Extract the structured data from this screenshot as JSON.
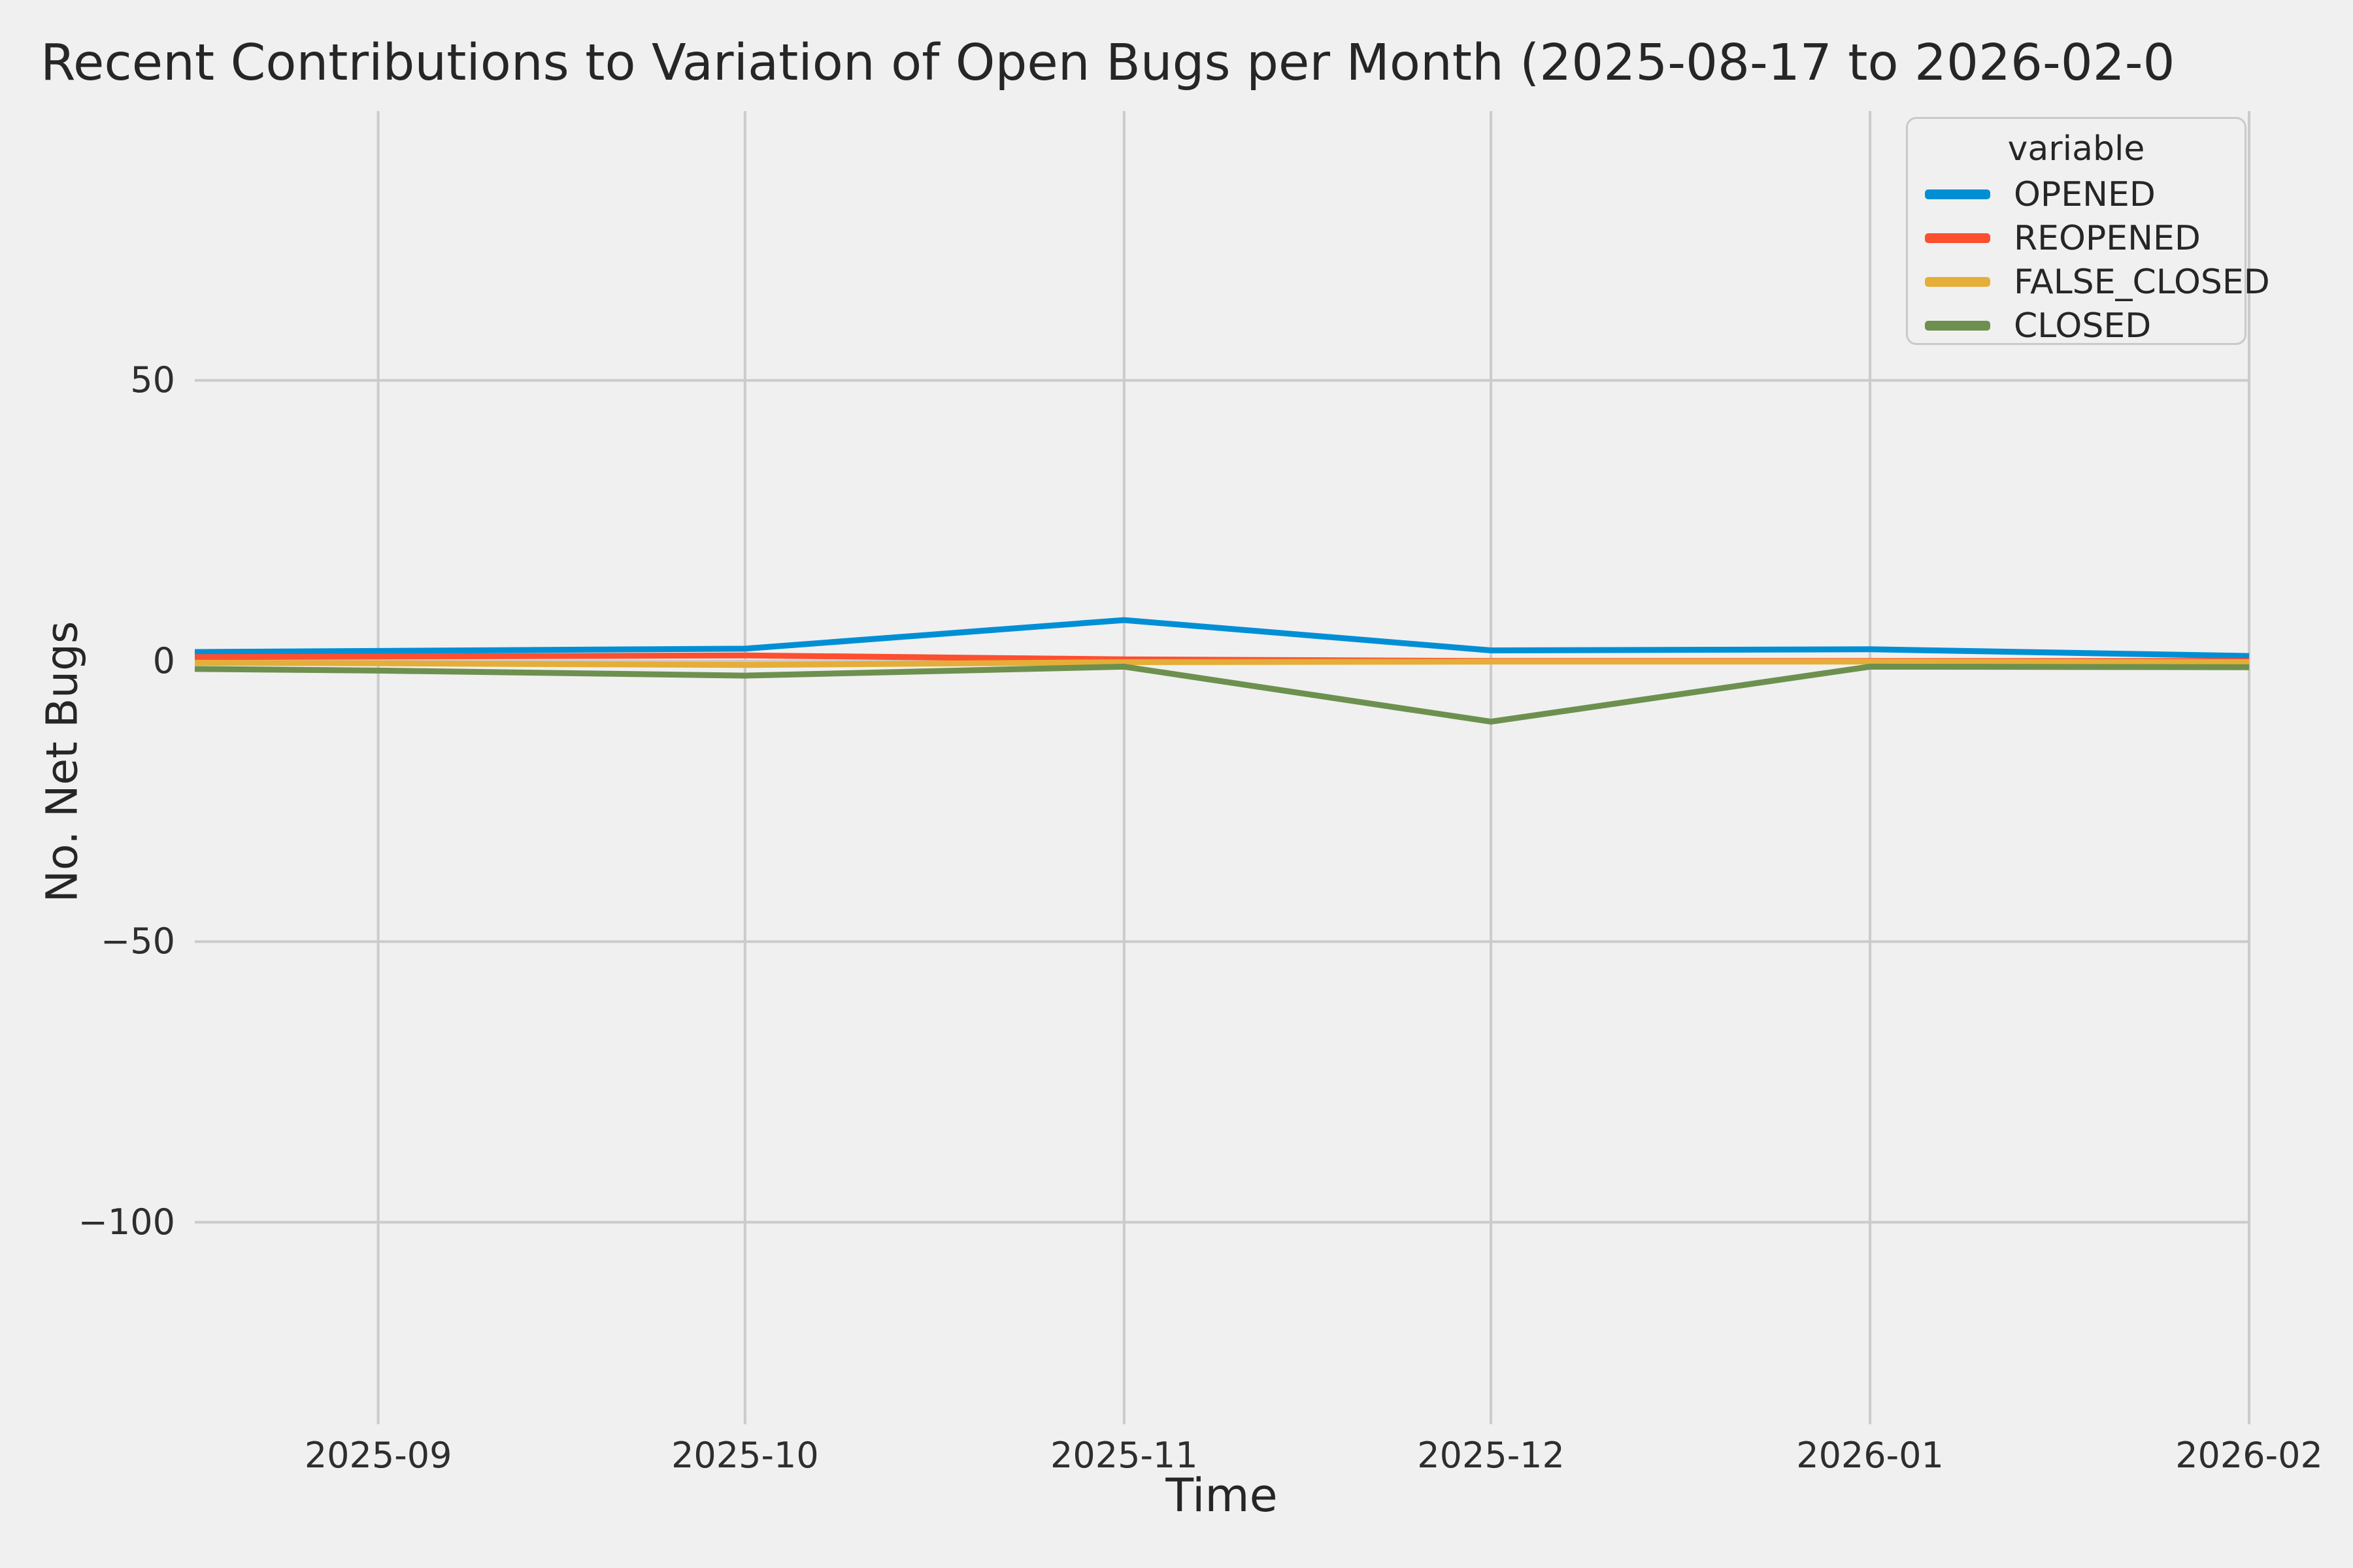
{
  "figure": {
    "title": "Recent Contributions to Variation of Open Bugs per Month (2025-08-17 to 2026-02-0",
    "background_color": "#f0f0f0",
    "grid_color": "#cbcbcb",
    "text_color": "#262626"
  },
  "chart_data": {
    "type": "line",
    "title": "Recent Contributions to Variation of Open Bugs per Month (2025-08-17 to 2026-02-0",
    "xlabel": "Time",
    "ylabel": "No. Net Bugs",
    "grid": true,
    "legend_position": "upper right",
    "legend_title": "variable",
    "x": [
      "2025-08-17",
      "2025-09-01",
      "2025-10-01",
      "2025-11-01",
      "2025-12-01",
      "2026-01-01",
      "2026-02-01"
    ],
    "x_days": [
      0,
      15,
      45,
      76,
      106,
      137,
      168
    ],
    "x_ticks": [
      {
        "label": "2025-09",
        "day": 15
      },
      {
        "label": "2025-10",
        "day": 45
      },
      {
        "label": "2025-11",
        "day": 76
      },
      {
        "label": "2025-12",
        "day": 106
      },
      {
        "label": "2026-01",
        "day": 137
      },
      {
        "label": "2026-02",
        "day": 168
      }
    ],
    "y_ticks": [
      {
        "label": "50",
        "value": 50
      },
      {
        "label": "0",
        "value": 0
      },
      {
        "label": "−50",
        "value": -50
      },
      {
        "label": "−100",
        "value": -100
      }
    ],
    "ylim": [
      -136,
      98
    ],
    "series": [
      {
        "name": "OPENED",
        "color": "#008fd5",
        "values": [
          1.6,
          1.8,
          2.2,
          7.3,
          1.9,
          2.1,
          0.9
        ]
      },
      {
        "name": "REOPENED",
        "color": "#fc4f30",
        "values": [
          0.7,
          0.8,
          1.0,
          0.3,
          0.0,
          0.0,
          0.0
        ]
      },
      {
        "name": "FALSE_CLOSED",
        "color": "#e5ae38",
        "values": [
          -0.3,
          -0.4,
          -0.7,
          -0.2,
          -0.1,
          -0.1,
          -0.2
        ]
      },
      {
        "name": "CLOSED",
        "color": "#6d904f",
        "values": [
          -1.4,
          -1.7,
          -2.6,
          -1.0,
          -10.8,
          -1.0,
          -1.1
        ]
      }
    ]
  }
}
